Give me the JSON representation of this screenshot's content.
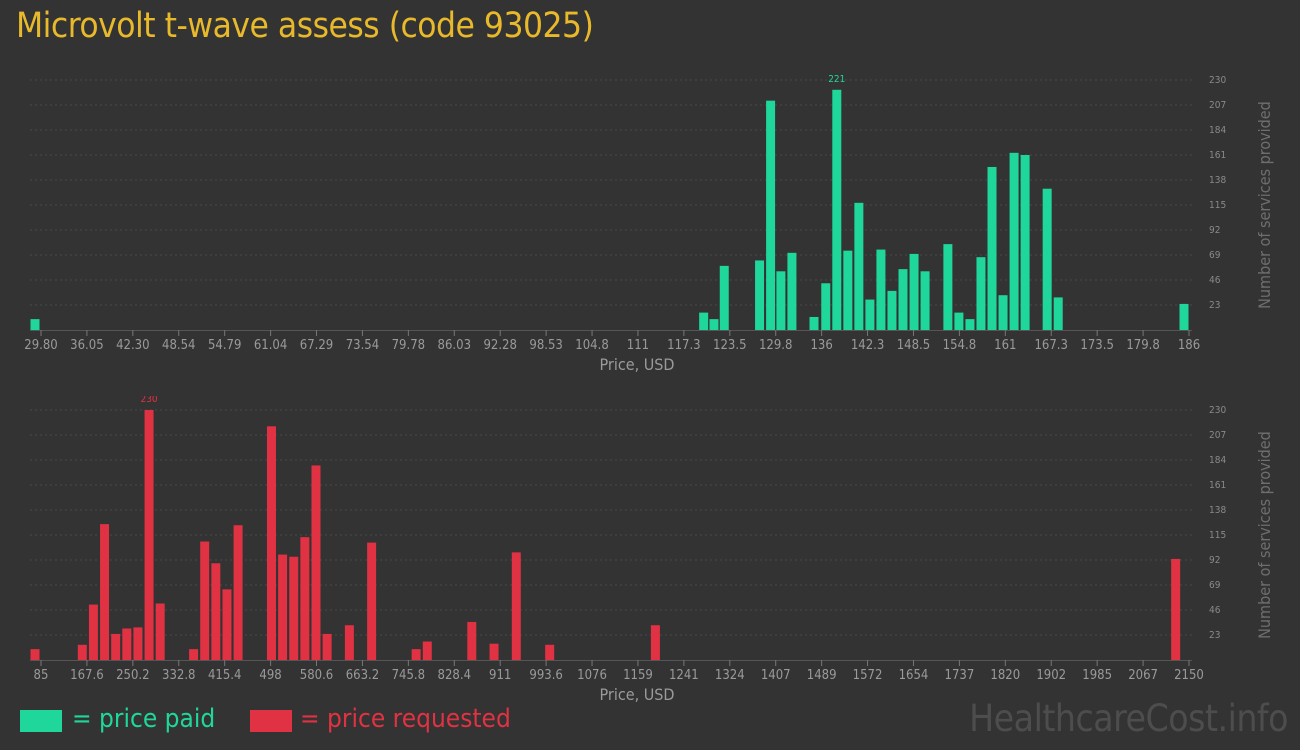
{
  "page": {
    "title": "Microvolt t-wave assess (code 93025)",
    "watermark": "HealthcareCost.info"
  },
  "legend": {
    "paid_label": "= price paid",
    "requested_label": "= price requested",
    "paid_color": "#1fd79a",
    "requested_color": "#e03242"
  },
  "chart_data": [
    {
      "id": "paid",
      "type": "bar",
      "title": "",
      "xlabel": "Price, USD",
      "ylabel": "Number of services provided",
      "color": "#1fd79a",
      "x_range": [
        29.8,
        186
      ],
      "ylim": [
        0,
        230
      ],
      "y_ticks": [
        "23",
        "46",
        "69",
        "92",
        "115",
        "138",
        "161",
        "184",
        "207",
        "230"
      ],
      "x_ticks": [
        "29.80",
        "36.05",
        "42.30",
        "48.54",
        "54.79",
        "61.04",
        "67.29",
        "73.54",
        "79.78",
        "86.03",
        "92.28",
        "98.53",
        "104.8",
        "111",
        "117.3",
        "123.5",
        "129.8",
        "136",
        "142.3",
        "148.5",
        "154.8",
        "161",
        "167.3",
        "173.5",
        "179.8",
        "186"
      ],
      "peak_label": "221",
      "bars": [
        {
          "x": 29.8,
          "y": 10
        },
        {
          "x": 120.7,
          "y": 16
        },
        {
          "x": 122.1,
          "y": 10
        },
        {
          "x": 123.5,
          "y": 59
        },
        {
          "x": 128.3,
          "y": 64
        },
        {
          "x": 129.8,
          "y": 211
        },
        {
          "x": 131.2,
          "y": 54
        },
        {
          "x": 132.7,
          "y": 71
        },
        {
          "x": 135.7,
          "y": 12
        },
        {
          "x": 137.3,
          "y": 43
        },
        {
          "x": 138.8,
          "y": 221
        },
        {
          "x": 140.3,
          "y": 73
        },
        {
          "x": 141.8,
          "y": 117
        },
        {
          "x": 143.3,
          "y": 28
        },
        {
          "x": 144.8,
          "y": 74
        },
        {
          "x": 146.3,
          "y": 36
        },
        {
          "x": 147.8,
          "y": 56
        },
        {
          "x": 149.3,
          "y": 70
        },
        {
          "x": 150.8,
          "y": 54
        },
        {
          "x": 153.9,
          "y": 79
        },
        {
          "x": 155.4,
          "y": 16
        },
        {
          "x": 156.9,
          "y": 10
        },
        {
          "x": 158.4,
          "y": 67
        },
        {
          "x": 159.9,
          "y": 150
        },
        {
          "x": 161.4,
          "y": 32
        },
        {
          "x": 162.9,
          "y": 163
        },
        {
          "x": 164.4,
          "y": 161
        },
        {
          "x": 167.4,
          "y": 130
        },
        {
          "x": 168.9,
          "y": 30
        },
        {
          "x": 186,
          "y": 24
        }
      ]
    },
    {
      "id": "requested",
      "type": "bar",
      "title": "",
      "xlabel": "Price, USD",
      "ylabel": "Number of services provided",
      "color": "#e03242",
      "x_range": [
        85,
        2150
      ],
      "ylim": [
        0,
        230
      ],
      "y_ticks": [
        "23",
        "46",
        "69",
        "92",
        "115",
        "138",
        "161",
        "184",
        "207",
        "230"
      ],
      "x_ticks": [
        "85",
        "167.6",
        "250.2",
        "332.8",
        "415.4",
        "498",
        "580.6",
        "663.2",
        "745.8",
        "828.4",
        "911",
        "993.6",
        "1076",
        "1159",
        "1241",
        "1324",
        "1407",
        "1489",
        "1572",
        "1654",
        "1737",
        "1820",
        "1902",
        "1985",
        "2067",
        "2150"
      ],
      "peak_label": "230",
      "bars": [
        {
          "x": 85,
          "y": 10
        },
        {
          "x": 170,
          "y": 14
        },
        {
          "x": 190,
          "y": 51
        },
        {
          "x": 210,
          "y": 125
        },
        {
          "x": 230,
          "y": 24
        },
        {
          "x": 250,
          "y": 29
        },
        {
          "x": 270,
          "y": 30
        },
        {
          "x": 290,
          "y": 230
        },
        {
          "x": 310,
          "y": 52
        },
        {
          "x": 370,
          "y": 10
        },
        {
          "x": 390,
          "y": 109
        },
        {
          "x": 410,
          "y": 89
        },
        {
          "x": 430,
          "y": 65
        },
        {
          "x": 450,
          "y": 124
        },
        {
          "x": 510,
          "y": 215
        },
        {
          "x": 530,
          "y": 97
        },
        {
          "x": 550,
          "y": 95
        },
        {
          "x": 570,
          "y": 113
        },
        {
          "x": 590,
          "y": 179
        },
        {
          "x": 610,
          "y": 24
        },
        {
          "x": 650,
          "y": 32
        },
        {
          "x": 690,
          "y": 108
        },
        {
          "x": 770,
          "y": 10
        },
        {
          "x": 790,
          "y": 17
        },
        {
          "x": 870,
          "y": 35
        },
        {
          "x": 910,
          "y": 15
        },
        {
          "x": 950,
          "y": 99
        },
        {
          "x": 1010,
          "y": 14
        },
        {
          "x": 1200,
          "y": 32
        },
        {
          "x": 2135,
          "y": 93
        }
      ]
    }
  ]
}
